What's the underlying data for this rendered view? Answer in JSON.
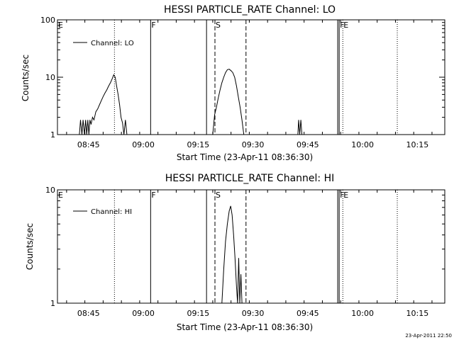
{
  "stamp": "23-Apr-2011 22:50",
  "chart_data": [
    {
      "type": "line",
      "title": "HESSI PARTICLE_RATE Channel: LO",
      "xlabel": "Start Time (23-Apr-11 08:36:30)",
      "ylabel": "Counts/sec",
      "yscale": "log",
      "ylim": [
        1,
        100
      ],
      "ytick_labels": [
        "1",
        "10",
        "100"
      ],
      "xlim_min_since_0836_30": [
        0,
        106
      ],
      "xtick_labels": [
        "08:45",
        "09:00",
        "09:15",
        "09:30",
        "09:45",
        "10:00",
        "10:15"
      ],
      "legend": {
        "position": "top-left",
        "label": "Channel: LO"
      },
      "series": [
        {
          "name": "Channel: LO",
          "points": [
            [
              6.0,
              1.0
            ],
            [
              6.3,
              1.8
            ],
            [
              6.7,
              1.0
            ],
            [
              7.0,
              1.8
            ],
            [
              7.4,
              1.0
            ],
            [
              7.7,
              1.8
            ],
            [
              8.0,
              1.0
            ],
            [
              8.3,
              1.8
            ],
            [
              8.6,
              1.0
            ],
            [
              8.9,
              1.8
            ],
            [
              9.2,
              1.5
            ],
            [
              9.6,
              2.0
            ],
            [
              10.0,
              1.8
            ],
            [
              10.5,
              2.5
            ],
            [
              11.0,
              2.8
            ],
            [
              11.5,
              3.3
            ],
            [
              12.0,
              3.9
            ],
            [
              12.5,
              4.6
            ],
            [
              13.0,
              5.3
            ],
            [
              13.5,
              6.0
            ],
            [
              14.0,
              7.0
            ],
            [
              14.5,
              8.0
            ],
            [
              15.0,
              9.5
            ],
            [
              15.4,
              11.0
            ],
            [
              15.8,
              10.0
            ],
            [
              16.2,
              7.0
            ],
            [
              16.6,
              5.0
            ],
            [
              17.0,
              3.3
            ],
            [
              17.4,
              2.0
            ],
            [
              17.8,
              1.6
            ],
            [
              18.2,
              1.0
            ],
            [
              18.6,
              1.8
            ],
            [
              19.0,
              1.0
            ]
          ]
        },
        {
          "name": "Channel: LO",
          "points": [
            [
              42.5,
              1.0
            ],
            [
              43.0,
              2.2
            ],
            [
              43.5,
              3.0
            ],
            [
              44.0,
              4.3
            ],
            [
              44.5,
              6.0
            ],
            [
              45.0,
              8.0
            ],
            [
              45.5,
              10.0
            ],
            [
              46.0,
              12.0
            ],
            [
              46.5,
              13.5
            ],
            [
              47.0,
              13.8
            ],
            [
              47.5,
              13.0
            ],
            [
              48.0,
              12.0
            ],
            [
              48.5,
              10.0
            ],
            [
              49.0,
              7.0
            ],
            [
              49.5,
              4.5
            ],
            [
              50.0,
              3.0
            ],
            [
              50.5,
              1.8
            ],
            [
              51.0,
              1.0
            ]
          ]
        },
        {
          "name": "Channel: LO",
          "points": [
            [
              65.8,
              1.0
            ],
            [
              66.0,
              1.8
            ],
            [
              66.3,
              1.0
            ],
            [
              66.6,
              1.8
            ],
            [
              66.9,
              1.0
            ]
          ]
        }
      ]
    },
    {
      "type": "line",
      "title": "HESSI PARTICLE_RATE Channel: HI",
      "xlabel": "Start Time (23-Apr-11 08:36:30)",
      "ylabel": "Counts/sec",
      "yscale": "log",
      "ylim": [
        1,
        10
      ],
      "ytick_labels": [
        "1",
        "10"
      ],
      "xlim_min_since_0836_30": [
        0,
        106
      ],
      "xtick_labels": [
        "08:45",
        "09:00",
        "09:15",
        "09:30",
        "09:45",
        "10:00",
        "10:15"
      ],
      "legend": {
        "position": "top-left",
        "label": "Channel: HI"
      },
      "series": [
        {
          "name": "Channel: HI",
          "points": [
            [
              45.0,
              1.0
            ],
            [
              45.5,
              2.0
            ],
            [
              46.0,
              3.5
            ],
            [
              46.5,
              5.0
            ],
            [
              47.0,
              6.5
            ],
            [
              47.4,
              7.2
            ],
            [
              47.8,
              6.0
            ],
            [
              48.2,
              4.0
            ],
            [
              48.6,
              2.5
            ],
            [
              49.0,
              1.4
            ],
            [
              49.3,
              1.0
            ],
            [
              49.6,
              2.5
            ],
            [
              49.9,
              1.0
            ],
            [
              50.2,
              1.8
            ],
            [
              50.5,
              1.0
            ]
          ]
        }
      ]
    }
  ],
  "markers": [
    {
      "x": 0.0,
      "style": "none",
      "flag": "E"
    },
    {
      "x": 15.6,
      "style": "dotted",
      "flag": ""
    },
    {
      "x": 25.5,
      "style": "solid",
      "flag": "F"
    },
    {
      "x": 40.8,
      "style": "solid",
      "flag": ""
    },
    {
      "x": 43.1,
      "style": "dashed",
      "flag": "S"
    },
    {
      "x": 51.6,
      "style": "dashed",
      "flag": ""
    },
    {
      "x": 76.7,
      "style": "solid",
      "flag": ""
    },
    {
      "x": 77.1,
      "style": "solid",
      "flag": "F"
    },
    {
      "x": 78.1,
      "style": "dotted",
      "flag": "E"
    },
    {
      "x": 93.0,
      "style": "dotted",
      "flag": ""
    }
  ]
}
